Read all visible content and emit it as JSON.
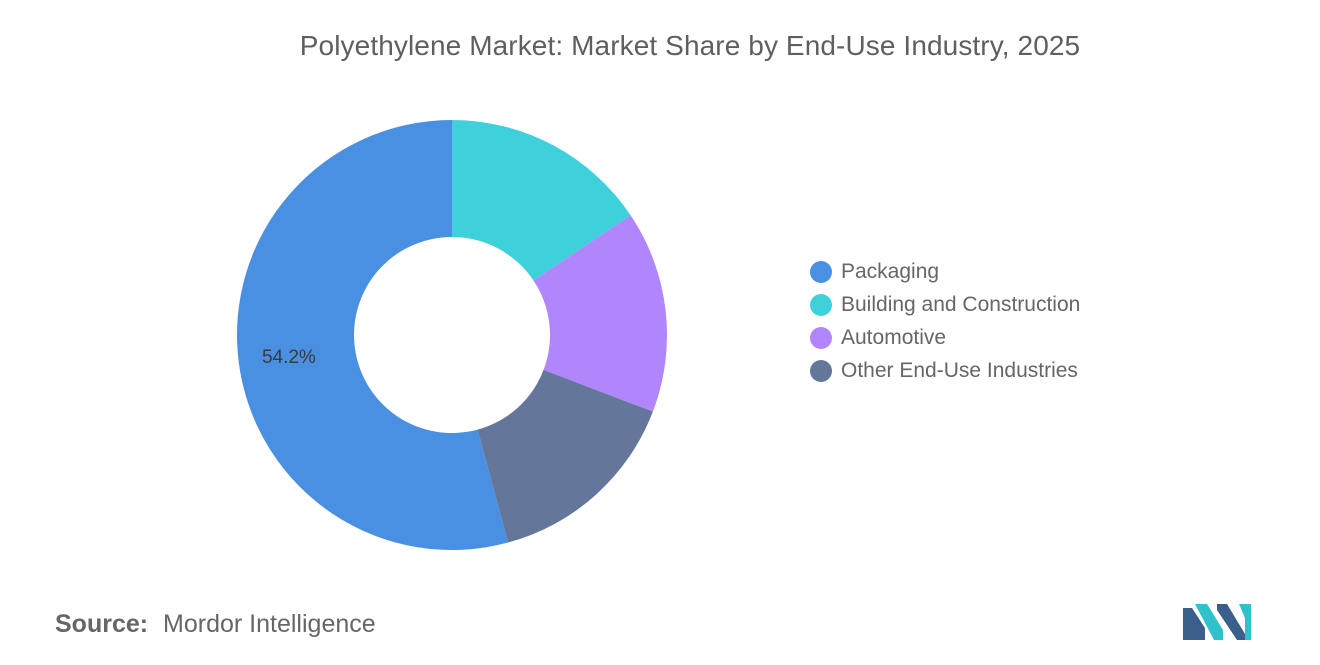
{
  "title": "Polyethylene Market: Market Share by End-Use Industry, 2025",
  "chart_data": {
    "type": "pie",
    "donut": true,
    "title": "Polyethylene Market: Market Share by End-Use Industry, 2025",
    "legend_position": "right",
    "categories": [
      "Packaging",
      "Building and Construction",
      "Automotive",
      "Other End-Use Industries"
    ],
    "values": [
      54.2,
      15.6,
      15.2,
      15.0
    ],
    "data_labels": [
      "54.2%",
      "",
      "",
      ""
    ],
    "colors": [
      "#4a90e2",
      "#3fd1db",
      "#b185fb",
      "#64779a"
    ]
  },
  "legend": {
    "items": [
      {
        "label": "Packaging",
        "color": "#4a90e2"
      },
      {
        "label": "Building and Construction",
        "color": "#3fd1db"
      },
      {
        "label": "Automotive",
        "color": "#b185fb"
      },
      {
        "label": "Other End-Use Industries",
        "color": "#64779a"
      }
    ]
  },
  "source": {
    "label": "Source:",
    "value": "Mordor Intelligence"
  },
  "logo": {
    "icon": "mordor-intelligence-logo-icon",
    "colors": [
      "#3a5f8a",
      "#2fc1cc"
    ]
  }
}
